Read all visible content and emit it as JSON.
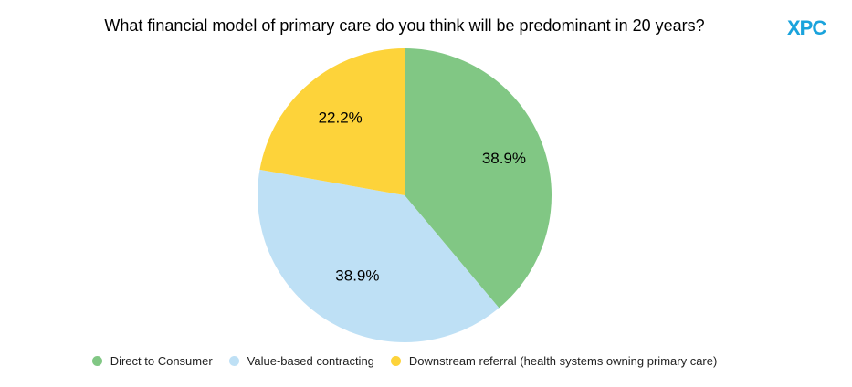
{
  "chart_data": {
    "type": "pie",
    "title": "What financial model of primary care do you think will be predominant in 20 years?",
    "slices": [
      {
        "label": "Direct to Consumer",
        "value": 38.9,
        "display": "38.9%",
        "color": "#81c784"
      },
      {
        "label": "Value-based contracting",
        "value": 38.9,
        "display": "38.9%",
        "color": "#bee0f5"
      },
      {
        "label": "Downstream referral (health systems owning primary care)",
        "value": 22.2,
        "display": "22.2%",
        "color": "#fdd33a"
      }
    ],
    "legend_position": "bottom"
  },
  "logo": {
    "text": "XPC",
    "color": "#1aa3dc"
  }
}
